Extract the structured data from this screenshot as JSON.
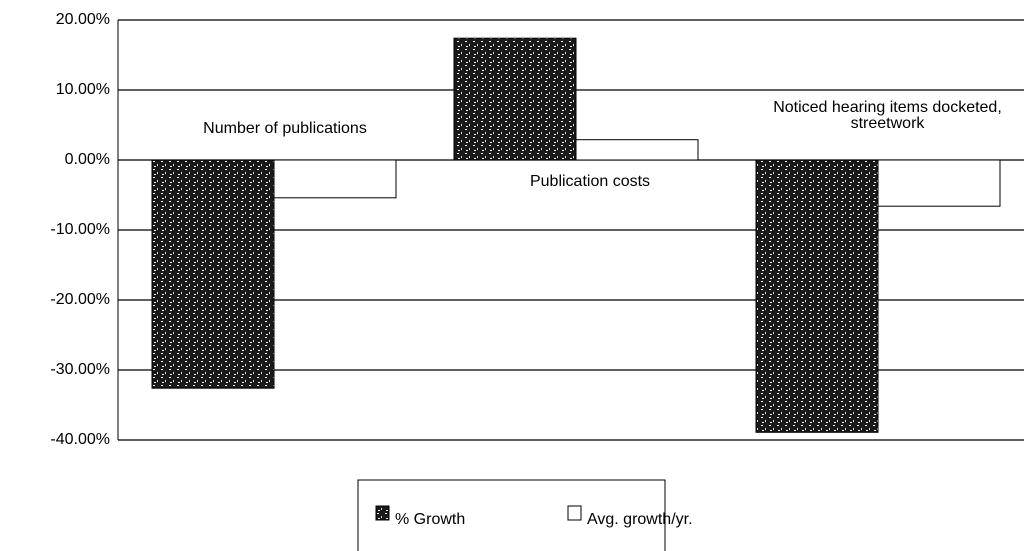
{
  "chart_data": {
    "type": "bar",
    "categories": [
      "Number of publications",
      "Publication costs",
      "Noticed hearing items docketed, streetwork"
    ],
    "series": [
      {
        "name": "% Growth",
        "color": "#1a1a1a",
        "values": [
          -32.6,
          17.4,
          -38.9
        ]
      },
      {
        "name": "Avg. growth/yr.",
        "color": "#ffffff",
        "values": [
          -5.4,
          2.9,
          -6.6
        ]
      }
    ],
    "ylim": [
      -40,
      20
    ],
    "yticks": [
      {
        "value": 20,
        "label": "20.00%"
      },
      {
        "value": 10,
        "label": "10.00%"
      },
      {
        "value": 0,
        "label": "0.00%"
      },
      {
        "value": -10,
        "label": "-10.00%"
      },
      {
        "value": -20,
        "label": "-20.00%"
      },
      {
        "value": -30,
        "label": "-30.00%"
      },
      {
        "value": -40,
        "label": "-40.00%"
      }
    ],
    "grid": true
  }
}
